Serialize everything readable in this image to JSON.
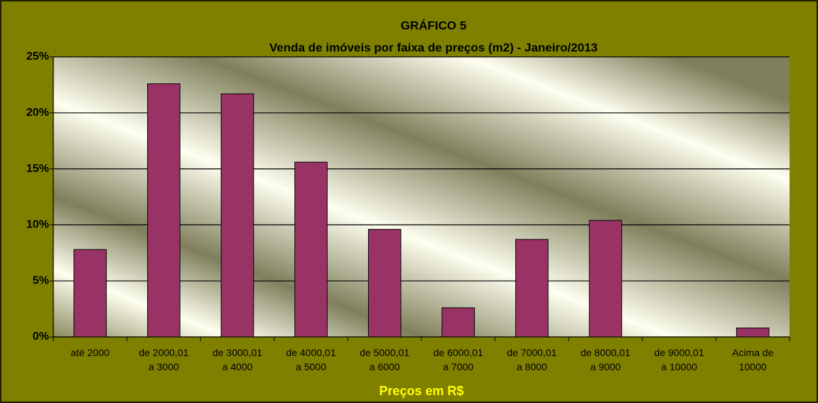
{
  "chart_data": {
    "type": "bar",
    "title": "GRÁFICO 5",
    "subtitle": "Venda de imóveis por faixa de preços (m2) - Janeiro/2013",
    "x_label": "Preços em R$",
    "categories": [
      "até 2000",
      "de 2000,01\na 3000",
      "de 3000,01\na 4000",
      "de 4000,01\na 5000",
      "de 5000,01\na 6000",
      "de 6000,01\na 7000",
      "de 7000,01\na 8000",
      "de 8000,01\na 9000",
      "de 9000,01\na 10000",
      "Acima de\n10000"
    ],
    "values": [
      7.8,
      22.6,
      21.7,
      15.6,
      9.6,
      2.6,
      8.7,
      10.4,
      0,
      0.8
    ],
    "color": "#993366",
    "ylim": [
      0,
      25
    ],
    "yticks": [
      {
        "value": 0,
        "label": "0%"
      },
      {
        "value": 5,
        "label": "5%"
      },
      {
        "value": 10,
        "label": "10%"
      },
      {
        "value": 15,
        "label": "15%"
      },
      {
        "value": 20,
        "label": "20%"
      },
      {
        "value": 25,
        "label": "25%"
      }
    ],
    "grid": true
  }
}
